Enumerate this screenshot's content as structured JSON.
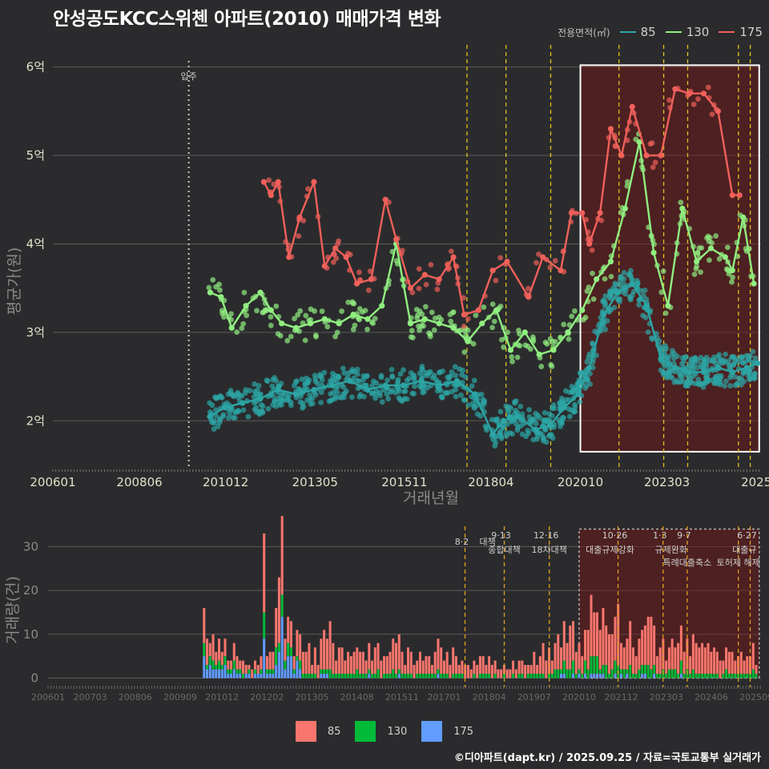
{
  "title": "안성공도KCC스위첸 아파트(2010) 매매가격 변화",
  "legend_title": "전용면적(㎡)",
  "series_colors": {
    "85": "#2ca5a5",
    "130": "#90ee80",
    "175": "#f0605a"
  },
  "bar_colors": {
    "85": "#f8766d",
    "130": "#00ba38",
    "175": "#619cff"
  },
  "bar_legend": [
    "85",
    "130",
    "175"
  ],
  "footer": "©디아파트(dapt.kr) / 2025.09.25 / 자료=국토교통부 실거래가",
  "chart_data": [
    {
      "type": "line",
      "title": "안성공도KCC스위첸 아파트(2010) 매매가격 변화",
      "xlabel": "거래년월",
      "ylabel": "평균가(원)",
      "xlim": [
        2006.0,
        2025.8
      ],
      "ylim": [
        1.45,
        6.25
      ],
      "x_ticks": [
        2006.0,
        2008.42,
        2010.83,
        2013.33,
        2015.83,
        2018.25,
        2020.75,
        2023.17,
        2025.67
      ],
      "x_tick_labels": [
        "200601",
        "200806",
        "201012",
        "201305",
        "201511",
        "201804",
        "202010",
        "202303",
        "2025"
      ],
      "y_ticks": [
        2,
        3,
        4,
        5,
        6
      ],
      "y_tick_labels": [
        "2억",
        "3억",
        "4억",
        "5억",
        "6억"
      ],
      "occupancy": {
        "x": 2009.8,
        "label": "입주"
      },
      "policy_lines": [
        2017.58,
        2018.67,
        2019.92,
        2021.83,
        2023.08,
        2023.75,
        2025.17,
        2025.5
      ],
      "highlight": {
        "x0": 2020.75,
        "x1": 2025.75,
        "y0": 1.65,
        "y1": 6.02
      },
      "series": [
        {
          "name": "85",
          "x": [
            2010.4,
            2010.8,
            2011.3,
            2011.8,
            2012.3,
            2012.8,
            2013.3,
            2013.8,
            2014.3,
            2014.8,
            2015.3,
            2015.8,
            2016.3,
            2016.8,
            2017.3,
            2017.8,
            2018.3,
            2018.6,
            2019.0,
            2019.5,
            2019.9,
            2020.3,
            2020.7,
            2021.0,
            2021.4,
            2021.8,
            2022.2,
            2022.6,
            2023.0,
            2023.4,
            2023.8,
            2024.2,
            2024.6,
            2025.0,
            2025.4,
            2025.7
          ],
          "values": [
            2.05,
            2.15,
            2.2,
            2.25,
            2.35,
            2.3,
            2.35,
            2.4,
            2.45,
            2.35,
            2.4,
            2.4,
            2.45,
            2.4,
            2.45,
            2.3,
            1.85,
            2.0,
            2.05,
            1.9,
            1.95,
            2.15,
            2.3,
            2.6,
            3.2,
            3.45,
            3.55,
            3.3,
            2.7,
            2.6,
            2.55,
            2.55,
            2.6,
            2.55,
            2.6,
            2.65
          ]
        },
        {
          "name": "130",
          "x": [
            2010.4,
            2010.7,
            2011.0,
            2011.4,
            2011.8,
            2012.1,
            2012.4,
            2012.8,
            2013.2,
            2013.6,
            2014.0,
            2014.4,
            2014.8,
            2015.2,
            2015.6,
            2016.0,
            2016.4,
            2016.8,
            2017.2,
            2017.6,
            2018.0,
            2018.4,
            2018.8,
            2019.2,
            2019.6,
            2020.0,
            2020.4,
            2020.8,
            2021.2,
            2021.6,
            2022.0,
            2022.4,
            2022.8,
            2023.2,
            2023.6,
            2024.0,
            2024.4,
            2024.8,
            2025.0,
            2025.3,
            2025.6
          ],
          "values": [
            3.45,
            3.4,
            3.05,
            3.3,
            3.45,
            3.25,
            3.1,
            3.05,
            3.1,
            3.15,
            3.1,
            3.2,
            3.15,
            3.3,
            4.0,
            3.1,
            3.15,
            3.1,
            3.05,
            2.9,
            3.1,
            3.25,
            2.8,
            3.0,
            2.75,
            2.8,
            3.0,
            3.25,
            3.6,
            3.8,
            4.4,
            5.15,
            3.9,
            3.3,
            4.4,
            3.8,
            3.95,
            3.85,
            3.7,
            4.3,
            3.55
          ]
        },
        {
          "name": "175",
          "x": [
            2011.9,
            2012.1,
            2012.3,
            2012.6,
            2012.9,
            2013.3,
            2013.6,
            2013.9,
            2014.2,
            2014.5,
            2014.9,
            2015.3,
            2015.6,
            2016.0,
            2016.4,
            2016.8,
            2017.2,
            2017.5,
            2017.9,
            2018.3,
            2018.7,
            2019.3,
            2019.7,
            2020.2,
            2020.5,
            2020.8,
            2021.0,
            2021.3,
            2021.6,
            2021.9,
            2022.2,
            2022.6,
            2023.0,
            2023.4,
            2023.8,
            2024.2,
            2024.6,
            2025.0,
            2025.2
          ],
          "values": [
            4.7,
            4.55,
            4.7,
            3.85,
            4.3,
            4.7,
            3.75,
            3.95,
            3.85,
            3.55,
            3.6,
            4.5,
            4.05,
            3.5,
            3.65,
            3.6,
            3.85,
            3.2,
            3.25,
            3.7,
            3.8,
            3.4,
            3.85,
            3.7,
            4.35,
            4.35,
            4.0,
            4.35,
            5.3,
            5.0,
            5.55,
            5.0,
            5.0,
            5.75,
            5.7,
            5.7,
            5.5,
            4.55,
            4.55
          ]
        }
      ]
    },
    {
      "type": "bar",
      "title": "",
      "xlabel": "",
      "ylabel": "거래량(건)",
      "xlim": [
        2006.0,
        2025.8
      ],
      "ylim": [
        -1,
        35
      ],
      "y_ticks": [
        0,
        10,
        20,
        30
      ],
      "y_tick_labels": [
        "0",
        "10",
        "20",
        "30"
      ],
      "x_ticks": [
        2006.0,
        2007.17,
        2008.42,
        2009.67,
        2010.83,
        2012.08,
        2013.33,
        2014.58,
        2015.83,
        2017.0,
        2018.25,
        2019.5,
        2020.75,
        2021.92,
        2023.17,
        2024.42,
        2025.67
      ],
      "x_tick_labels": [
        "200601",
        "200703",
        "200806",
        "200909",
        "201012",
        "201202",
        "201305",
        "201408",
        "201511",
        "201701",
        "201804",
        "201907",
        "202010",
        "202112",
        "202303",
        "202406",
        "202509"
      ],
      "highlight": {
        "x0": 2020.75,
        "x1": 2025.75,
        "y0": 0,
        "y1": 34
      },
      "policy_lines": [
        2017.58,
        2018.67,
        2019.92,
        2021.83,
        2023.08,
        2023.75,
        2025.17,
        2025.5
      ],
      "policy_dates": [
        "8·2",
        "9·13",
        "12·16",
        "10·26",
        "1·3",
        "9·7",
        "",
        "6·27"
      ],
      "policy_names": [
        "대책",
        "종합대책",
        "18차대책",
        "대출규제강화",
        "규제완화",
        "특례대출축소",
        "토허제 해제",
        "대출규"
      ],
      "monthly_data_years": [
        2010.3,
        2025.7
      ],
      "totals_profile": [
        13,
        9,
        6,
        4,
        5,
        7,
        33,
        12,
        8,
        6,
        10,
        7,
        6,
        5,
        6,
        7,
        8,
        6,
        5,
        6,
        7,
        5,
        4,
        5,
        6,
        4,
        3,
        4,
        5,
        6,
        8,
        12,
        9,
        7,
        18,
        14,
        10,
        9,
        12,
        8,
        7,
        10,
        9,
        8,
        6,
        7,
        5,
        6
      ]
    }
  ]
}
